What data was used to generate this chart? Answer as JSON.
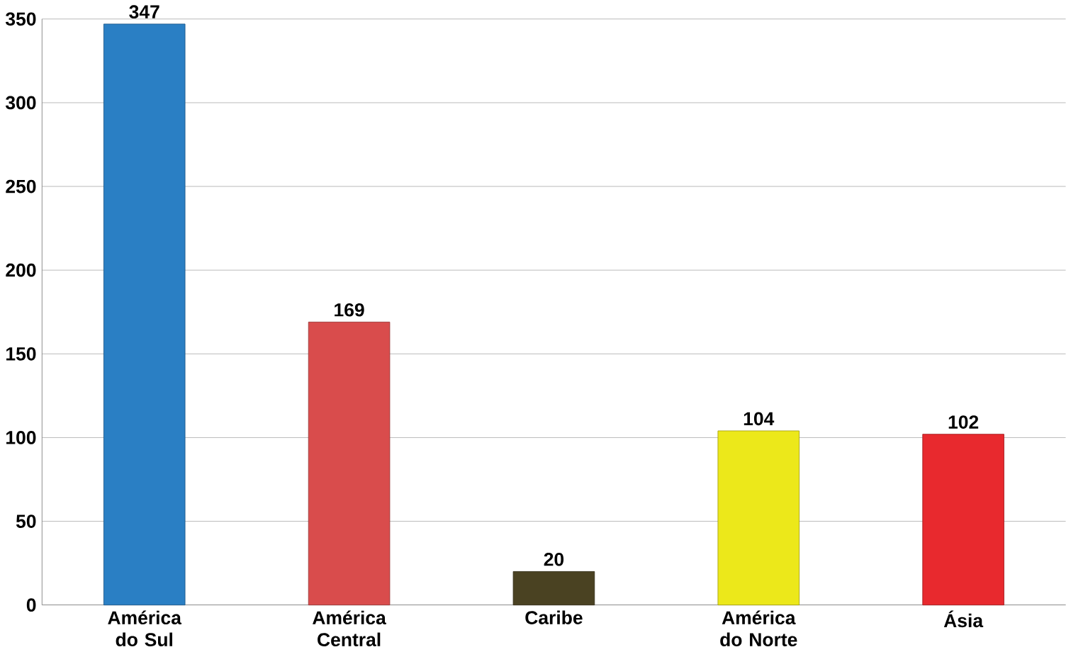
{
  "chart_data": {
    "type": "bar",
    "categories": [
      "América do Sul",
      "América Central",
      "Caribe",
      "América do Norte",
      "Ásia"
    ],
    "values": [
      347,
      169,
      20,
      104,
      102
    ],
    "colors": [
      "#2a7fc4",
      "#d94c4c",
      "#4a4222",
      "#ece81a",
      "#e8292e"
    ],
    "ylim": [
      0,
      350
    ],
    "yticks": [
      0,
      50,
      100,
      150,
      200,
      250,
      300,
      350
    ],
    "grid": "y",
    "data_labels": true
  }
}
